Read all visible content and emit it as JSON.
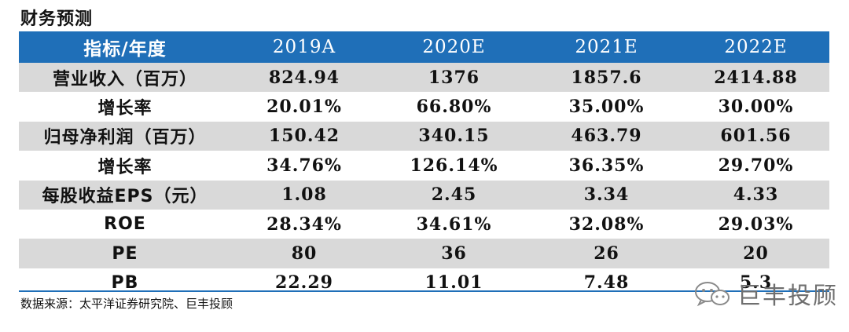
{
  "title": "财务预测",
  "header": [
    "指标/年度",
    "2019A",
    "2020E",
    "2021E",
    "2022E"
  ],
  "rows": [
    {
      "label": "营业收入（百万）",
      "values": [
        "824.94",
        "1376",
        "1857.6",
        "2414.88"
      ]
    },
    {
      "label": "增长率",
      "values": [
        "20.01%",
        "66.80%",
        "35.00%",
        "30.00%"
      ]
    },
    {
      "label": "归母净利润（百万）",
      "values": [
        "150.42",
        "340.15",
        "463.79",
        "601.56"
      ]
    },
    {
      "label": "增长率",
      "values": [
        "34.76%",
        "126.14%",
        "36.35%",
        "29.70%"
      ]
    },
    {
      "label": "每股收益EPS（元）",
      "values": [
        "1.08",
        "2.45",
        "3.34",
        "4.33"
      ]
    },
    {
      "label": "ROE",
      "values": [
        "28.34%",
        "34.61%",
        "32.08%",
        "29.03%"
      ]
    },
    {
      "label": "PE",
      "values": [
        "80",
        "36",
        "26",
        "20"
      ]
    },
    {
      "label": "PB",
      "values": [
        "22.29",
        "11.01",
        "7.48",
        "5.3"
      ]
    }
  ],
  "source": "数据来源：太平洋证券研究院、巨丰投顾",
  "watermark": {
    "icon": "wechat-icon",
    "text": "巨丰投顾"
  },
  "colors": {
    "header_bg": "#1f6fb8",
    "shade": "#d9d9d9"
  }
}
